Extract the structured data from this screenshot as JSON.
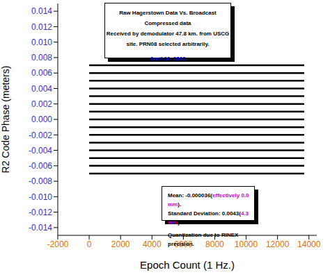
{
  "chart_data": {
    "type": "line",
    "x_label": "Epoch Count (1 Hz.)",
    "y_label": "R2 Code Phase (meters)",
    "x": [
      0,
      13700
    ],
    "xlim": [
      -2000,
      14500
    ],
    "xticks": [
      -2000,
      0,
      2000,
      4000,
      6000,
      8000,
      10000,
      12000,
      14000
    ],
    "ylim": [
      -0.015,
      0.015
    ],
    "yticks": [
      -0.014,
      -0.012,
      {
        "value": -0.01,
        "label": "-0.010"
      },
      -0.008,
      -0.006,
      -0.004,
      -0.002,
      {
        "value": 0,
        "label": "0.000"
      },
      0.002,
      0.004,
      0.006,
      0.008,
      {
        "value": 0.01,
        "label": "0.010"
      },
      0.012,
      0.014
    ],
    "grid": false,
    "series": [
      {
        "color": "#000000",
        "values": [
          0.007,
          0.007
        ]
      },
      {
        "color": "#000000",
        "values": [
          0.006,
          0.006
        ]
      },
      {
        "color": "#000000",
        "values": [
          0.005,
          0.005
        ]
      },
      {
        "color": "#000000",
        "values": [
          0.004,
          0.004
        ]
      },
      {
        "color": "#000000",
        "values": [
          0.003,
          0.003
        ]
      },
      {
        "color": "#000000",
        "values": [
          0.002,
          0.002
        ]
      },
      {
        "color": "#000000",
        "values": [
          0.001,
          0.001
        ]
      },
      {
        "color": "#000000",
        "values": [
          0,
          0
        ]
      },
      {
        "color": "#000000",
        "values": [
          -0.001,
          -0.001
        ]
      },
      {
        "color": "#000000",
        "values": [
          -0.002,
          -0.002
        ]
      },
      {
        "color": "#000000",
        "values": [
          -0.003,
          -0.003
        ]
      },
      {
        "color": "#000000",
        "values": [
          -0.004,
          -0.004
        ]
      },
      {
        "color": "#000000",
        "values": [
          -0.005,
          -0.005
        ]
      },
      {
        "color": "#000000",
        "values": [
          -0.006,
          -0.006
        ]
      },
      {
        "color": "#000000",
        "values": [
          -0.007,
          -0.007
        ]
      }
    ],
    "annotations": [
      {
        "lines": [
          [
            {
              "text": "Raw Hagerstown Data Vs. Broadcast Compressed data"
            }
          ],
          [
            {
              "text": "Received by demodulator 47.8 km. from USCG"
            }
          ],
          [
            {
              "text": "site.  PRN08 selected arbitrarily."
            }
          ],
          [
            {
              "text": "April 10, 2002",
              "color": "#0000cc"
            }
          ]
        ]
      },
      {
        "lines": [
          [
            {
              "text": "Mean: -0.000036("
            },
            {
              "text": "effectively 0.0 mm",
              "color": "#cc00cc"
            },
            {
              "text": ")."
            }
          ],
          [
            {
              "text": "Standard Deviation: 0.0043("
            },
            {
              "text": "4.3 mm",
              "color": "#cc00cc"
            },
            {
              "text": ")."
            }
          ],
          [
            {
              "text": "Quantization due to RINEX precision."
            }
          ]
        ]
      }
    ]
  }
}
